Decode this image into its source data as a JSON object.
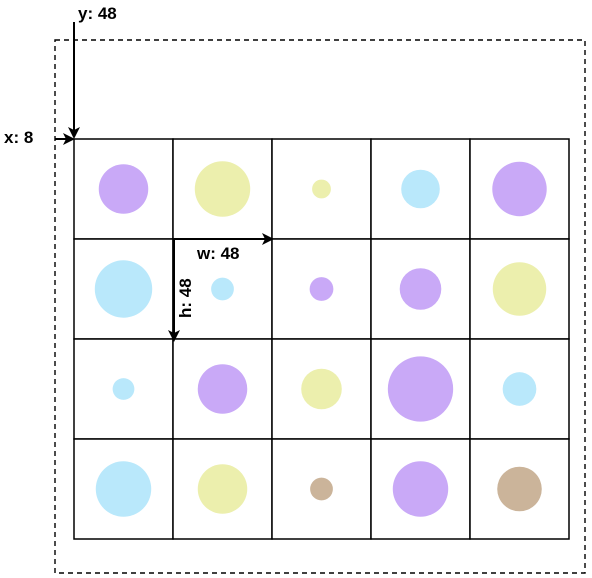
{
  "annotations": {
    "y": "y: 48",
    "x": "x: 8",
    "w": "w: 48",
    "h": "h: 48"
  },
  "grid": {
    "rows": 4,
    "cols": 5
  },
  "colors": {
    "purple": "#c9a9f7",
    "yellow": "#ecefad",
    "blue": "#b9e8fb",
    "brown": "#cbb49a"
  },
  "cells": [
    {
      "color": "purple",
      "size": 0.5
    },
    {
      "color": "yellow",
      "size": 0.56
    },
    {
      "color": "yellow",
      "size": 0.19
    },
    {
      "color": "blue",
      "size": 0.39
    },
    {
      "color": "purple",
      "size": 0.55
    },
    {
      "color": "blue",
      "size": 0.58
    },
    {
      "color": "blue",
      "size": 0.23
    },
    {
      "color": "purple",
      "size": 0.24
    },
    {
      "color": "purple",
      "size": 0.42
    },
    {
      "color": "yellow",
      "size": 0.54
    },
    {
      "color": "blue",
      "size": 0.22
    },
    {
      "color": "purple",
      "size": 0.5
    },
    {
      "color": "yellow",
      "size": 0.41
    },
    {
      "color": "purple",
      "size": 0.66
    },
    {
      "color": "blue",
      "size": 0.34
    },
    {
      "color": "blue",
      "size": 0.56
    },
    {
      "color": "yellow",
      "size": 0.5
    },
    {
      "color": "brown",
      "size": 0.23
    },
    {
      "color": "purple",
      "size": 0.56
    },
    {
      "color": "brown",
      "size": 0.45
    }
  ]
}
